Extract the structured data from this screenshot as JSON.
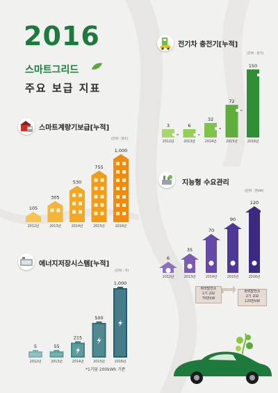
{
  "header": {
    "year": "2016",
    "subtitle_line1": "스마트그리드",
    "subtitle_line2": "주요 보급 지표"
  },
  "colors": {
    "brand_green": "#1e7a3c",
    "charger_green": "#3f9a3a",
    "meter_orange": "#f0a020",
    "storage_teal": "#1e6070",
    "demand_purple": "#3c2a80"
  },
  "sections": {
    "ev_charger": {
      "title": "전기차 충전기[누적]",
      "unit": "(단위 : 천기)",
      "icon": "ev-charger-icon"
    },
    "smart_meter": {
      "title": "스마트계량기보급[누적]",
      "unit": "(단위 : 천호)",
      "icon": "smart-meter-icon"
    },
    "demand_mgmt": {
      "title": "지능형 수요관리",
      "unit": "(단위 : 만kW)",
      "icon": "power-plant-icon"
    },
    "energy_storage": {
      "title": "에너지저장시스템[누적]",
      "unit": "(단위 : 기)",
      "icon": "battery-icon",
      "footnote": "*1기당 200kWh 기준"
    }
  },
  "callouts": [
    {
      "lines": [
        "화력발전소",
        "1기 규모",
        "70만kW"
      ]
    },
    {
      "lines": [
        "화력발전소",
        "2기 규모",
        "120만kW"
      ]
    }
  ],
  "chart_data": [
    {
      "id": "ev_charger",
      "type": "bar",
      "title": "전기차 충전기[누적]",
      "categories": [
        "2012년",
        "2013년",
        "2014년",
        "2015년",
        "2016년"
      ],
      "values": [
        3,
        6,
        32,
        72,
        150
      ],
      "unit": "(단위 : 천기)"
    },
    {
      "id": "smart_meter",
      "type": "bar",
      "title": "스마트계량기보급[누적]",
      "categories": [
        "2012년",
        "2013년",
        "2014년",
        "2015년",
        "2016년"
      ],
      "values": [
        105,
        305,
        530,
        755,
        1000
      ],
      "value_labels": [
        "105",
        "305",
        "530",
        "755",
        "1,000"
      ],
      "unit": "(단위 : 천호)"
    },
    {
      "id": "demand_mgmt",
      "type": "bar",
      "title": "지능형 수요관리",
      "categories": [
        "2012년",
        "2013년",
        "2014년",
        "2015년",
        "2016년"
      ],
      "values": [
        6,
        35,
        70,
        90,
        120
      ],
      "unit": "(단위 : 만kW)"
    },
    {
      "id": "energy_storage",
      "type": "bar",
      "title": "에너지저장시스템[누적]",
      "categories": [
        "2012년",
        "2013년",
        "2014년",
        "2015년",
        "2016년"
      ],
      "values": [
        5,
        55,
        215,
        500,
        1000
      ],
      "value_labels": [
        "5",
        "55",
        "215",
        "500",
        "1,000"
      ],
      "unit": "(단위 : 기)"
    }
  ]
}
